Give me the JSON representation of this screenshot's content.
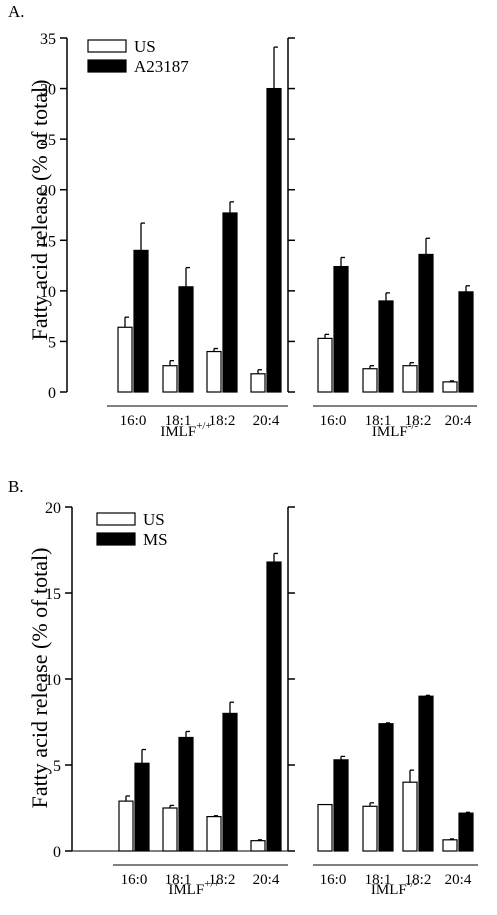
{
  "ylabel": "Fatty acid release (% of total)",
  "chart_data": [
    {
      "type": "bar",
      "panel_label": "A.",
      "ylabel": "Fatty acid release (% of total)",
      "ylim": [
        0,
        35
      ],
      "yticks": [
        0,
        5,
        10,
        15,
        20,
        25,
        30,
        35
      ],
      "legend": {
        "placement": "top-left",
        "entries": [
          "US",
          "A23187"
        ]
      },
      "groups": [
        {
          "label": "IMLF",
          "label_sup": "+/+",
          "categories": [
            "16:0",
            "18:1",
            "18:2",
            "20:4"
          ],
          "series": [
            {
              "name": "US",
              "values": [
                6.4,
                2.6,
                4.0,
                1.8
              ],
              "errors": [
                1.0,
                0.5,
                0.3,
                0.4
              ],
              "color": "#ffffff"
            },
            {
              "name": "A23187",
              "values": [
                14.0,
                10.4,
                17.7,
                30.0
              ],
              "errors": [
                2.7,
                1.9,
                1.1,
                4.1
              ],
              "color": "#000000"
            }
          ]
        },
        {
          "label": "IMLF",
          "label_sup": "-/-",
          "categories": [
            "16:0",
            "18:1",
            "18:2",
            "20:4"
          ],
          "series": [
            {
              "name": "US",
              "values": [
                5.3,
                2.3,
                2.6,
                1.0
              ],
              "errors": [
                0.4,
                0.3,
                0.3,
                0.1
              ],
              "color": "#ffffff"
            },
            {
              "name": "A23187",
              "values": [
                12.4,
                9.0,
                13.6,
                9.9
              ],
              "errors": [
                0.9,
                0.8,
                1.6,
                0.6
              ],
              "color": "#000000"
            }
          ]
        }
      ]
    },
    {
      "type": "bar",
      "panel_label": "B.",
      "ylabel": "Fatty acid release (% of total)",
      "ylim": [
        0,
        20
      ],
      "yticks": [
        0,
        5,
        10,
        15,
        20
      ],
      "legend": {
        "placement": "top-left",
        "entries": [
          "US",
          "MS"
        ]
      },
      "groups": [
        {
          "label": "IMLF",
          "label_sup": "+/+",
          "categories": [
            "16:0",
            "18:1",
            "18:2",
            "20:4"
          ],
          "series": [
            {
              "name": "US",
              "values": [
                2.9,
                2.5,
                2.0,
                0.6
              ],
              "errors": [
                0.3,
                0.15,
                0.05,
                0.05
              ],
              "color": "#ffffff"
            },
            {
              "name": "MS",
              "values": [
                5.1,
                6.6,
                8.0,
                16.8
              ],
              "errors": [
                0.8,
                0.35,
                0.65,
                0.5
              ],
              "color": "#000000"
            }
          ]
        },
        {
          "label": "IMLF",
          "label_sup": "-/-",
          "categories": [
            "16:0",
            "18:1",
            "18:2",
            "20:4"
          ],
          "series": [
            {
              "name": "US",
              "values": [
                2.7,
                2.6,
                4.0,
                0.65
              ],
              "errors": [
                0.0,
                0.2,
                0.7,
                0.05
              ],
              "color": "#ffffff"
            },
            {
              "name": "MS",
              "values": [
                5.3,
                7.4,
                9.0,
                2.2
              ],
              "errors": [
                0.2,
                0.05,
                0.05,
                0.05
              ],
              "color": "#000000"
            }
          ]
        }
      ]
    }
  ]
}
